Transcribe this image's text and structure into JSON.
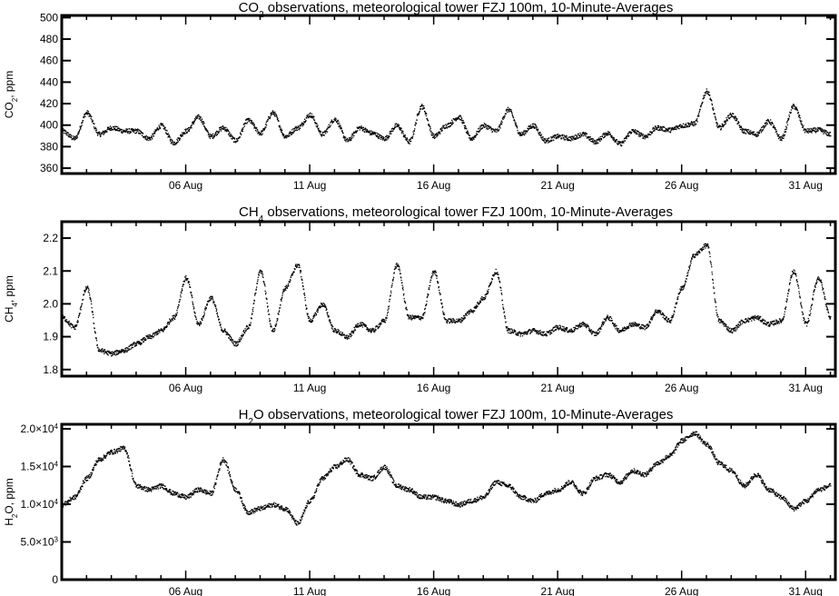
{
  "chart_data": [
    {
      "type": "scatter",
      "title": "CO",
      "title_sub": "2",
      "title_rest": " observations, meteorological tower FZJ 100m, 10-Minute-Averages",
      "ylabel": "CO",
      "ylabel_sub": "2",
      "ylabel_rest": ", ppm",
      "ylim": [
        355,
        502
      ],
      "yticks": [
        360,
        380,
        400,
        420,
        440,
        460,
        480,
        500
      ],
      "ytick_labels": [
        "360",
        "380",
        "400",
        "420",
        "440",
        "460",
        "480",
        "500"
      ],
      "xlim": [
        1,
        32.2
      ],
      "xticks": [
        6,
        11,
        16,
        21,
        26,
        31
      ],
      "xtick_labels": [
        "06 Aug",
        "11 Aug",
        "16 Aug",
        "21 Aug",
        "26 Aug",
        "31 Aug"
      ],
      "series": [
        {
          "x": [
            1.0,
            1.5,
            2.0,
            2.5,
            3.0,
            3.5,
            4.0,
            4.5,
            5.0,
            5.5,
            6.0,
            6.5,
            7.0,
            7.5,
            8.0,
            8.5,
            9.0,
            9.5,
            10.0,
            10.5,
            11.0,
            11.5,
            12.0,
            12.5,
            13.0,
            13.5,
            14.0,
            14.5,
            15.0,
            15.5,
            16.0,
            16.5,
            17.0,
            17.5,
            18.0,
            18.5,
            19.0,
            19.5,
            20.0,
            20.5,
            21.0,
            21.5,
            22.0,
            22.5,
            23.0,
            23.5,
            24.0,
            24.5,
            25.0,
            25.5,
            26.0,
            26.5,
            27.0,
            27.5,
            28.0,
            28.5,
            29.0,
            29.5,
            30.0,
            30.5,
            31.0,
            31.5,
            32.0
          ],
          "y": [
            395,
            388,
            412,
            392,
            398,
            395,
            395,
            388,
            400,
            384,
            395,
            408,
            390,
            398,
            386,
            405,
            393,
            412,
            390,
            398,
            410,
            392,
            406,
            386,
            398,
            393,
            388,
            400,
            385,
            418,
            390,
            400,
            408,
            388,
            400,
            395,
            415,
            392,
            400,
            386,
            390,
            388,
            392,
            385,
            393,
            383,
            395,
            390,
            398,
            396,
            400,
            402,
            432,
            398,
            410,
            395,
            392,
            404,
            388,
            418,
            395,
            396,
            392
          ]
        }
      ]
    },
    {
      "type": "scatter",
      "title": "CH",
      "title_sub": "4",
      "title_rest": " observations, meteorological tower FZJ 100m, 10-Minute-Averages",
      "ylabel": "CH",
      "ylabel_sub": "4",
      "ylabel_rest": ", ppm",
      "ylim": [
        1.78,
        2.25
      ],
      "yticks": [
        1.8,
        1.9,
        2.0,
        2.1,
        2.2
      ],
      "ytick_labels": [
        "1.8",
        "1.9",
        "2.0",
        "2.1",
        "2.2"
      ],
      "xlim": [
        1,
        32.2
      ],
      "xticks": [
        6,
        11,
        16,
        21,
        26,
        31
      ],
      "xtick_labels": [
        "06 Aug",
        "11 Aug",
        "16 Aug",
        "21 Aug",
        "26 Aug",
        "31 Aug"
      ],
      "series": [
        {
          "x": [
            1.0,
            1.5,
            2.0,
            2.5,
            3.0,
            3.5,
            4.0,
            4.5,
            5.0,
            5.5,
            6.0,
            6.5,
            7.0,
            7.5,
            8.0,
            8.5,
            9.0,
            9.5,
            10.0,
            10.5,
            11.0,
            11.5,
            12.0,
            12.5,
            13.0,
            13.5,
            14.0,
            14.5,
            15.0,
            15.5,
            16.0,
            16.5,
            17.0,
            17.5,
            18.0,
            18.5,
            19.0,
            19.5,
            20.0,
            20.5,
            21.0,
            21.5,
            22.0,
            22.5,
            23.0,
            23.5,
            24.0,
            24.5,
            25.0,
            25.5,
            26.0,
            26.5,
            27.0,
            27.5,
            28.0,
            28.5,
            29.0,
            29.5,
            30.0,
            30.5,
            31.0,
            31.5,
            32.0
          ],
          "y": [
            1.96,
            1.93,
            2.05,
            1.86,
            1.85,
            1.86,
            1.88,
            1.9,
            1.92,
            1.96,
            2.08,
            1.94,
            2.02,
            1.92,
            1.88,
            1.93,
            2.1,
            1.92,
            2.05,
            2.12,
            1.95,
            2.0,
            1.92,
            1.9,
            1.94,
            1.92,
            1.95,
            2.12,
            1.96,
            1.96,
            2.1,
            1.95,
            1.95,
            1.98,
            2.02,
            2.1,
            1.92,
            1.91,
            1.92,
            1.91,
            1.93,
            1.92,
            1.94,
            1.91,
            1.96,
            1.92,
            1.94,
            1.93,
            1.98,
            1.95,
            2.05,
            2.15,
            2.18,
            1.95,
            1.92,
            1.95,
            1.96,
            1.94,
            1.95,
            2.1,
            1.94,
            2.08,
            1.96
          ]
        }
      ]
    },
    {
      "type": "scatter",
      "title": "H",
      "title_sub": "2",
      "title_rest": "O observations, meteorological tower FZJ 100m, 10-Minute-Averages",
      "ylabel": "H",
      "ylabel_sub": "2",
      "ylabel_rest": "O, ppm",
      "ylim": [
        0,
        20600
      ],
      "yticks": [
        0,
        5000,
        10000,
        15000,
        20000
      ],
      "ytick_labels": [
        "0",
        "5.0×10",
        "1.0×10",
        "1.5×10",
        "2.0×10"
      ],
      "ytick_exponents": [
        "",
        "3",
        "4",
        "4",
        "4"
      ],
      "xlim": [
        1,
        32.2
      ],
      "xticks": [
        6,
        11,
        16,
        21,
        26,
        31
      ],
      "xtick_labels": [
        "06 Aug",
        "11 Aug",
        "16 Aug",
        "21 Aug",
        "26 Aug",
        "31 Aug"
      ],
      "series": [
        {
          "x": [
            1.0,
            1.5,
            2.0,
            2.5,
            3.0,
            3.5,
            4.0,
            4.5,
            5.0,
            5.5,
            6.0,
            6.5,
            7.0,
            7.5,
            8.0,
            8.5,
            9.0,
            9.5,
            10.0,
            10.5,
            11.0,
            11.5,
            12.0,
            12.5,
            13.0,
            13.5,
            14.0,
            14.5,
            15.0,
            15.5,
            16.0,
            16.5,
            17.0,
            17.5,
            18.0,
            18.5,
            19.0,
            19.5,
            20.0,
            20.5,
            21.0,
            21.5,
            22.0,
            22.5,
            23.0,
            23.5,
            24.0,
            24.5,
            25.0,
            25.5,
            26.0,
            26.5,
            27.0,
            27.5,
            28.0,
            28.5,
            29.0,
            29.5,
            30.0,
            30.5,
            31.0,
            31.5,
            32.0
          ],
          "y": [
            10000,
            11000,
            13500,
            16000,
            17000,
            17500,
            12500,
            12000,
            12500,
            11500,
            11000,
            12000,
            11500,
            16000,
            12000,
            9000,
            9500,
            10000,
            9500,
            7500,
            10500,
            13500,
            15000,
            16000,
            14000,
            13500,
            15000,
            12500,
            12000,
            11000,
            11000,
            10500,
            10000,
            10500,
            11000,
            13000,
            12500,
            11000,
            10500,
            11500,
            12000,
            13000,
            11500,
            13500,
            14000,
            13000,
            14500,
            14000,
            15500,
            16500,
            18500,
            19500,
            18000,
            15500,
            14500,
            12500,
            14000,
            12000,
            11000,
            9500,
            10500,
            12000,
            12500
          ]
        }
      ]
    }
  ]
}
